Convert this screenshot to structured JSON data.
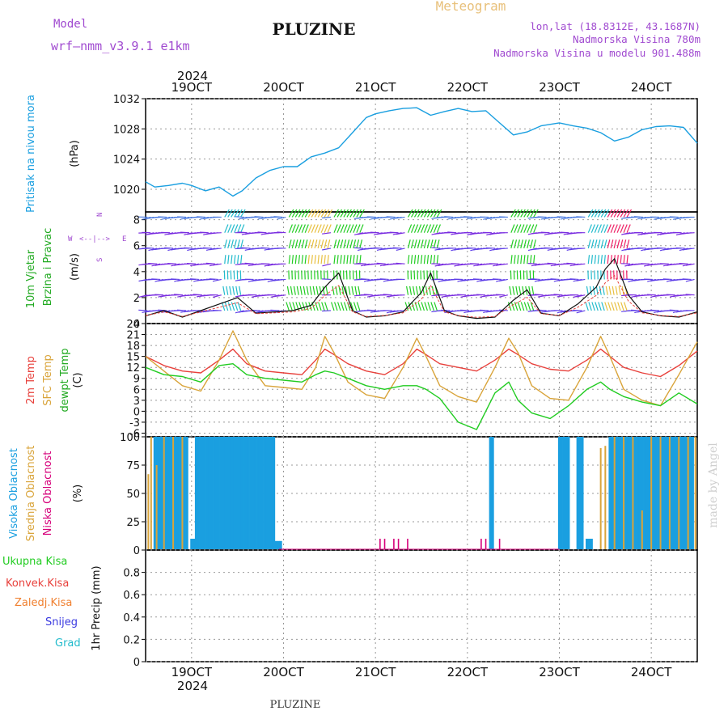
{
  "header": {
    "model_label": "Model",
    "model_name": "wrf—nmm_v3.9.1  e1km",
    "title": "PLUZINE",
    "meteogram_label": "Meteogram",
    "lonlat": "lon,lat (18.8312E, 43.1687N)",
    "elevation": "Nadmorska Visina 780m",
    "model_elevation": "Nadmorska Visina u modelu 901.488m",
    "footer_title": "PLUZINE",
    "credit": "made by Angel"
  },
  "colors": {
    "pressure": "#1a9fe0",
    "temp2m": "#e8413c",
    "sfc": "#d9a43a",
    "dewpt": "#22cc22",
    "high_cloud": "#1a9fe0",
    "mid_cloud": "#d9a43a",
    "low_cloud": "#d6007a",
    "wind_purple": "#7a2ee0"
  },
  "time_axis": {
    "year": "2024",
    "ticks": [
      "19OCT",
      "20OCT",
      "21OCT",
      "22OCT",
      "23OCT",
      "24OCT"
    ]
  },
  "chart_data": [
    {
      "type": "line",
      "id": "pressure",
      "ylabel_main": "Pritisak na nivou mora",
      "ylabel_unit": "(hPa)",
      "ylim": [
        1017,
        1032
      ],
      "yticks": [
        "1020",
        "1024",
        "1028",
        "1032"
      ],
      "x_days": [
        18.5,
        18.6,
        18.75,
        18.9,
        19.0,
        19.15,
        19.3,
        19.45,
        19.55,
        19.7,
        19.85,
        20.0,
        20.15,
        20.3,
        20.45,
        20.6,
        20.75,
        20.9,
        21.0,
        21.15,
        21.3,
        21.45,
        21.6,
        21.75,
        21.9,
        22.05,
        22.2,
        22.35,
        22.5,
        22.65,
        22.8,
        23.0,
        23.15,
        23.3,
        23.45,
        23.6,
        23.75,
        23.9,
        24.05,
        24.2,
        24.35,
        24.5
      ],
      "values": [
        1021,
        1020.3,
        1020.5,
        1020.8,
        1020.5,
        1019.8,
        1020.3,
        1019.1,
        1019.8,
        1021.5,
        1022.5,
        1023,
        1023,
        1024.3,
        1024.8,
        1025.5,
        1027.5,
        1029.5,
        1030,
        1030.4,
        1030.7,
        1030.8,
        1029.8,
        1030.3,
        1030.7,
        1030.3,
        1030.4,
        1028.8,
        1027.2,
        1027.6,
        1028.4,
        1028.8,
        1028.4,
        1028.1,
        1027.5,
        1026.4,
        1026.9,
        1027.9,
        1028.3,
        1028.4,
        1028.2,
        1026.1
      ]
    },
    {
      "type": "line",
      "id": "wind",
      "ylabel_main": "10m Vjetar",
      "ylabel_sub": "Brzina i Pravac",
      "ylabel_unit": "(m/s)",
      "compass": [
        "N",
        "W",
        "E",
        "S"
      ],
      "ylim": [
        0,
        8.6
      ],
      "yticks": [
        "0",
        "2",
        "4",
        "6",
        "8"
      ],
      "x_days": [
        18.5,
        18.7,
        18.9,
        19.1,
        19.3,
        19.5,
        19.7,
        19.9,
        20.1,
        20.3,
        20.45,
        20.6,
        20.75,
        20.9,
        21.1,
        21.3,
        21.5,
        21.6,
        21.75,
        21.9,
        22.1,
        22.3,
        22.5,
        22.65,
        22.8,
        23.0,
        23.2,
        23.4,
        23.5,
        23.6,
        23.75,
        23.9,
        24.1,
        24.3,
        24.5
      ],
      "values": [
        0.6,
        1.0,
        0.5,
        1.0,
        1.5,
        2.0,
        0.8,
        0.9,
        1.0,
        1.4,
        2.8,
        3.9,
        1.0,
        0.5,
        0.6,
        0.9,
        2.4,
        3.9,
        1.0,
        0.6,
        0.4,
        0.5,
        1.8,
        2.6,
        0.8,
        0.6,
        1.5,
        2.8,
        4.2,
        5.0,
        2.2,
        0.9,
        0.6,
        0.5,
        0.9
      ]
    },
    {
      "type": "line",
      "id": "temperature",
      "ylabel_lines": [
        "2m Temp",
        "SFC Temp",
        "dewpt Temp"
      ],
      "ylabel_unit": "(C)",
      "ylim": [
        -7,
        24
      ],
      "yticks": [
        "-6",
        "-3",
        "0",
        "3",
        "6",
        "9",
        "12",
        "15",
        "18",
        "21",
        "24"
      ],
      "x_days": [
        18.5,
        18.7,
        18.9,
        19.1,
        19.3,
        19.45,
        19.6,
        19.8,
        20.0,
        20.2,
        20.35,
        20.45,
        20.55,
        20.7,
        20.9,
        21.1,
        21.3,
        21.45,
        21.55,
        21.7,
        21.9,
        22.1,
        22.3,
        22.45,
        22.55,
        22.7,
        22.9,
        23.1,
        23.3,
        23.45,
        23.55,
        23.7,
        23.9,
        24.1,
        24.3,
        24.5
      ],
      "series": [
        {
          "name": "2m Temp",
          "values": [
            15,
            12.5,
            11,
            10.5,
            14,
            17,
            13,
            11,
            10.5,
            10,
            14,
            17,
            15.5,
            13,
            11,
            10,
            13,
            17,
            15.5,
            13,
            12,
            11,
            14,
            17,
            15.5,
            13,
            11.5,
            11,
            14,
            17,
            15,
            12,
            10.5,
            9.5,
            12.5,
            16.5
          ]
        },
        {
          "name": "SFC Temp",
          "values": [
            15,
            11,
            7,
            5.5,
            14,
            22,
            14,
            7,
            6.5,
            6,
            12,
            20.5,
            16,
            8,
            4.5,
            3.5,
            12,
            20,
            15,
            7,
            4,
            2.5,
            12,
            20,
            16,
            7,
            3.5,
            3,
            12,
            20.5,
            15,
            6,
            3,
            1.5,
            10,
            19
          ]
        },
        {
          "name": "dewpt Temp",
          "values": [
            12,
            10,
            9.5,
            8,
            12.5,
            13,
            10,
            9,
            8.5,
            8,
            10,
            11,
            10.5,
            9,
            7,
            6,
            7,
            7,
            6,
            3.5,
            -3,
            -5,
            5,
            8,
            3,
            -0.5,
            -2,
            1.5,
            6,
            8,
            6,
            4,
            2.5,
            1.5,
            5,
            2
          ]
        }
      ]
    },
    {
      "type": "bar",
      "id": "cloud",
      "ylabel_lines": [
        "Visoka Oblacnost",
        "Srednja Oblacnost",
        "Niska Oblacnost"
      ],
      "ylabel_unit": "(%)",
      "ylim": [
        0,
        100
      ],
      "yticks": [
        "0",
        "25",
        "50",
        "75",
        "100"
      ],
      "high_cloud_segments": [
        [
          18.6,
          18.95,
          100
        ],
        [
          19.0,
          19.05,
          10
        ],
        [
          19.05,
          19.1,
          100
        ],
        [
          19.12,
          19.9,
          100
        ],
        [
          19.92,
          19.97,
          8
        ],
        [
          22.25,
          22.28,
          100
        ],
        [
          23.0,
          23.1,
          100
        ],
        [
          23.2,
          23.25,
          100
        ],
        [
          23.3,
          23.35,
          10
        ],
        [
          23.55,
          24.45,
          100
        ]
      ],
      "mid_cloud_bars": [
        [
          18.53,
          67
        ],
        [
          18.56,
          100
        ],
        [
          18.62,
          75
        ],
        [
          18.7,
          100
        ],
        [
          18.8,
          100
        ],
        [
          18.9,
          100
        ],
        [
          23.45,
          90
        ],
        [
          23.5,
          92
        ],
        [
          23.6,
          100
        ],
        [
          23.7,
          100
        ],
        [
          23.8,
          100
        ],
        [
          23.9,
          35
        ],
        [
          24.0,
          100
        ],
        [
          24.1,
          100
        ],
        [
          24.2,
          100
        ],
        [
          24.3,
          100
        ],
        [
          24.4,
          100
        ],
        [
          24.48,
          100
        ]
      ],
      "low_cloud_bars": [
        [
          21.05,
          10
        ],
        [
          21.1,
          10
        ],
        [
          21.2,
          10
        ],
        [
          21.25,
          10
        ],
        [
          21.35,
          10
        ],
        [
          22.15,
          10
        ],
        [
          22.2,
          10
        ],
        [
          22.35,
          10
        ]
      ]
    },
    {
      "type": "bar",
      "id": "precip",
      "legend": [
        "Ukupna Kisa",
        "Konvek.Kisa",
        "Zaledj.Kisa",
        "Snijeg",
        "Grad"
      ],
      "legend_colors": [
        "#22cc22",
        "#e8413c",
        "#f08030",
        "#3a3ae0",
        "#22bbcc"
      ],
      "ylabel_unit": "1hr Precip (mm)",
      "ylim": [
        0,
        1.0
      ],
      "yticks": [
        "0",
        "0.2",
        "0.4",
        "0.6",
        "0.8"
      ],
      "values": []
    }
  ]
}
